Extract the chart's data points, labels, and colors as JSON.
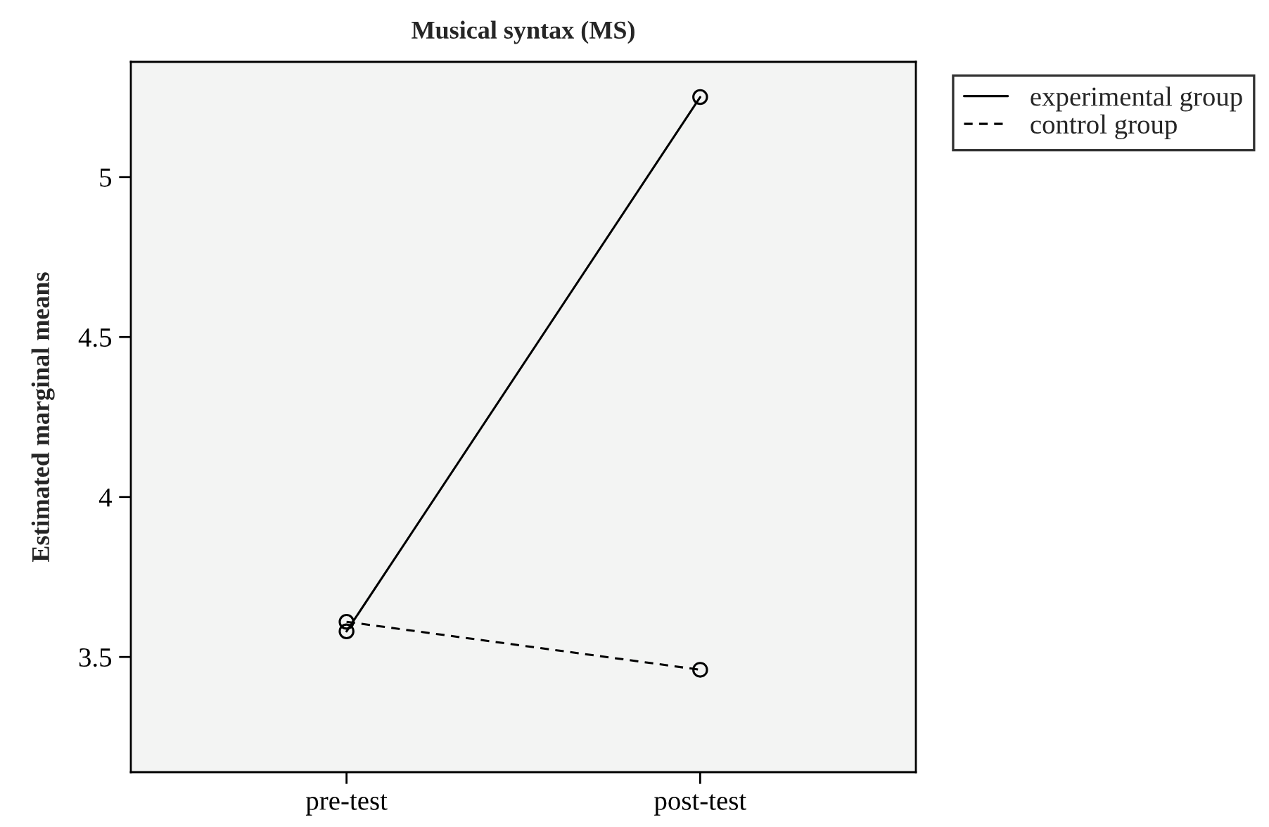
{
  "chart_data": {
    "type": "line",
    "title": "Musical syntax (MS)",
    "ylabel": "Estimated marginal means",
    "categories": [
      "pre-test",
      "post-test"
    ],
    "series": [
      {
        "name": "experimental group",
        "color": "#000000",
        "values": [
          3.58,
          5.25
        ],
        "line_style": "solid"
      },
      {
        "name": "control group",
        "color": "#000000",
        "values": [
          3.61,
          3.46
        ],
        "line_style": "dashed"
      }
    ],
    "ylim": [
      3.14,
      5.36
    ],
    "yticks": [
      {
        "value": 3.5,
        "label": "3.5"
      },
      {
        "value": 4,
        "label": "4"
      },
      {
        "value": 4.5,
        "label": "4.5"
      },
      {
        "value": 5,
        "label": "5"
      }
    ],
    "marker": "circle",
    "grid": false,
    "legend": "top right"
  }
}
